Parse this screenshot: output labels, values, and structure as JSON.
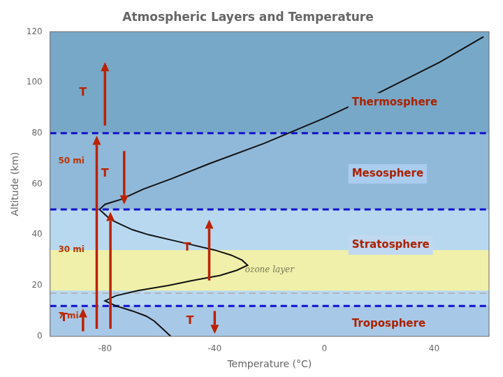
{
  "chart_data": {
    "type": "line",
    "title": "Atmospheric Layers and Temperature",
    "xlabel": "Temperature (°C)",
    "ylabel": "Altitude (km)",
    "x": [
      -56,
      -58,
      -60,
      -62,
      -65,
      -70,
      -76,
      -80,
      -76,
      -68,
      -57,
      -48,
      -38,
      -32,
      -28,
      -30,
      -34,
      -40,
      -48,
      -56,
      -64,
      -70,
      -74,
      -78,
      -80,
      -82,
      -80,
      -74,
      -66,
      -56,
      -42,
      -22,
      0,
      20,
      42,
      58
    ],
    "series": [
      {
        "color": "#111111",
        "values": [
          0,
          2,
          4,
          6,
          8,
          10,
          12,
          14,
          16,
          18,
          20,
          22,
          24,
          26,
          28,
          30,
          32,
          34,
          36,
          38,
          40,
          42,
          44,
          46,
          48,
          50,
          52,
          54,
          58,
          62,
          68,
          76,
          86,
          96,
          108,
          118
        ]
      }
    ],
    "xlim": [
      -100,
      60
    ],
    "ylim": [
      0,
      120
    ],
    "xticks": [
      -80,
      -40,
      0,
      40
    ],
    "yticks": [
      0,
      20,
      40,
      60,
      80,
      100,
      120
    ],
    "grid": false,
    "bands": [
      {
        "ymin": 0,
        "ymax": 12,
        "color": "#a8c8e8"
      },
      {
        "ymin": 12,
        "ymax": 50,
        "color": "#b8d8f0"
      },
      {
        "ymin": 50,
        "ymax": 80,
        "color": "#90b8d8"
      },
      {
        "ymin": 80,
        "ymax": 120,
        "color": "#78a8c8"
      },
      {
        "ymin": 18,
        "ymax": 34,
        "color": "#f0f0aa"
      }
    ],
    "lines": [
      {
        "y": 17,
        "color": "#aaaaaa",
        "line_style": "dashed"
      },
      {
        "y": 12,
        "color": "#1010cc",
        "line_style": "dashed"
      },
      {
        "y": 50,
        "color": "#1010cc",
        "line_style": "dashed"
      },
      {
        "y": 80,
        "color": "#1010cc",
        "line_style": "dashed"
      }
    ],
    "arrows": [
      {
        "x": -88,
        "y1": 2,
        "y2": 11,
        "color": "#bb2200"
      },
      {
        "x": -83,
        "y1": 3,
        "y2": 79,
        "color": "#bb2200"
      },
      {
        "x": -78,
        "y1": 3,
        "y2": 49,
        "color": "#bb2200"
      },
      {
        "x": -73,
        "y1": 73,
        "y2": 52,
        "color": "#bb2200"
      },
      {
        "x": -42,
        "y1": 22,
        "y2": 46,
        "color": "#bb2200"
      },
      {
        "x": -40,
        "y1": 10,
        "y2": 1,
        "color": "#bb2200"
      },
      {
        "x": -80,
        "y1": 83,
        "y2": 108,
        "color": "#bb2200"
      }
    ],
    "layer_labels": [
      {
        "text": "Thermosphere",
        "x": 10,
        "y": 92,
        "color": "#aa2200",
        "background": "#78a8c8"
      },
      {
        "text": "Mesosphere",
        "x": 10,
        "y": 64,
        "color": "#aa2200",
        "background": "#aaccee"
      },
      {
        "text": "Stratosphere",
        "x": 10,
        "y": 36,
        "color": "#aa2200",
        "background": "#c0d8f0"
      },
      {
        "text": "Troposphere",
        "x": 10,
        "y": 5,
        "color": "#aa2200",
        "background": "#a8c8e8"
      }
    ],
    "annotations": [
      {
        "text": "ozone layer",
        "x": -20,
        "y": 26,
        "color": "#777755"
      },
      {
        "text": "T",
        "x": -95,
        "y": 7,
        "color": "#bb2200"
      },
      {
        "text": "T",
        "x": -80,
        "y": 64,
        "color": "#bb2200"
      },
      {
        "text": "T",
        "x": -50,
        "y": 35,
        "color": "#bb2200"
      },
      {
        "text": "T",
        "x": -49,
        "y": 6,
        "color": "#bb2200"
      },
      {
        "text": "T",
        "x": -88,
        "y": 96,
        "color": "#bb2200"
      }
    ],
    "mile_labels": [
      {
        "text": "50 mi",
        "x": -97,
        "y": 69,
        "color": "#bb3300"
      },
      {
        "text": "30 mi",
        "x": -97,
        "y": 34,
        "color": "#bb3300"
      },
      {
        "text": "7 mi",
        "x": -97,
        "y": 8,
        "color": "#bb3300"
      }
    ]
  }
}
